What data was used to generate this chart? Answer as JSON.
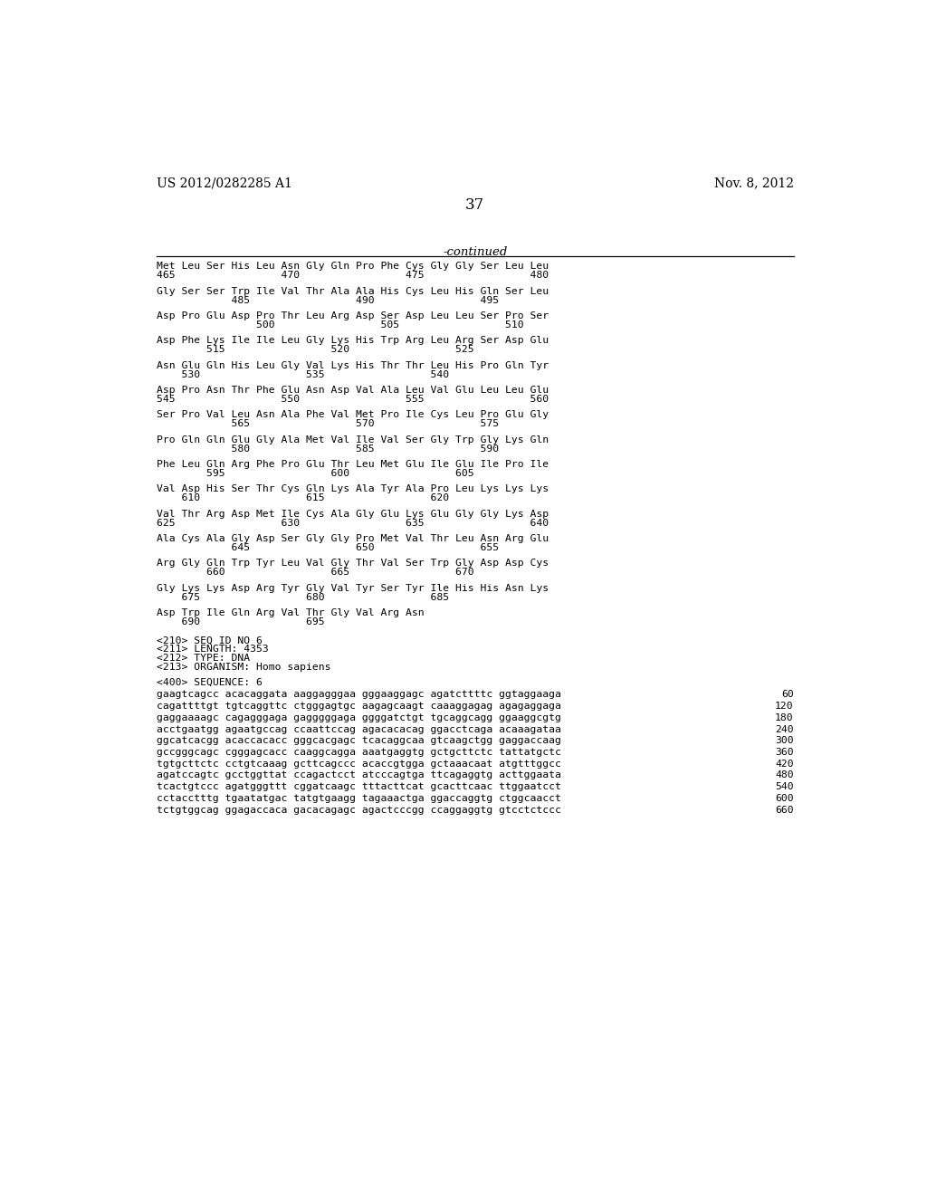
{
  "patent_number": "US 2012/0282285 A1",
  "date": "Nov. 8, 2012",
  "page_number": "37",
  "continued_label": "-continued",
  "background_color": "#ffffff",
  "text_color": "#000000",
  "protein_data": [
    [
      "Met Leu Ser His Leu Asn Gly Gln Pro Phe Cys Gly Gly Ser Leu Leu",
      "465                 470                 475                 480"
    ],
    [
      "Gly Ser Ser Trp Ile Val Thr Ala Ala His Cys Leu His Gln Ser Leu",
      "            485                 490                 495"
    ],
    [
      "Asp Pro Glu Asp Pro Thr Leu Arg Asp Ser Asp Leu Leu Ser Pro Ser",
      "                500                 505                 510"
    ],
    [
      "Asp Phe Lys Ile Ile Leu Gly Lys His Trp Arg Leu Arg Ser Asp Glu",
      "        515                 520                 525"
    ],
    [
      "Asn Glu Gln His Leu Gly Val Lys His Thr Thr Leu His Pro Gln Tyr",
      "    530                 535                 540"
    ],
    [
      "Asp Pro Asn Thr Phe Glu Asn Asp Val Ala Leu Val Glu Leu Leu Glu",
      "545                 550                 555                 560"
    ],
    [
      "Ser Pro Val Leu Asn Ala Phe Val Met Pro Ile Cys Leu Pro Glu Gly",
      "            565                 570                 575"
    ],
    [
      "Pro Gln Gln Glu Gly Ala Met Val Ile Val Ser Gly Trp Gly Lys Gln",
      "            580                 585                 590"
    ],
    [
      "Phe Leu Gln Arg Phe Pro Glu Thr Leu Met Glu Ile Glu Ile Pro Ile",
      "        595                 600                 605"
    ],
    [
      "Val Asp His Ser Thr Cys Gln Lys Ala Tyr Ala Pro Leu Lys Lys Lys",
      "    610                 615                 620"
    ],
    [
      "Val Thr Arg Asp Met Ile Cys Ala Gly Glu Lys Glu Gly Gly Lys Asp",
      "625                 630                 635                 640"
    ],
    [
      "Ala Cys Ala Gly Asp Ser Gly Gly Pro Met Val Thr Leu Asn Arg Glu",
      "            645                 650                 655"
    ],
    [
      "Arg Gly Gln Trp Tyr Leu Val Gly Thr Val Ser Trp Gly Asp Asp Cys",
      "        660                 665                 670"
    ],
    [
      "Gly Lys Lys Asp Arg Tyr Gly Val Tyr Ser Tyr Ile His His Asn Lys",
      "    675                 680                 685"
    ],
    [
      "Asp Trp Ile Gln Arg Val Thr Gly Val Arg Asn",
      "    690                 695"
    ]
  ],
  "seq_info": [
    "<210> SEQ ID NO 6",
    "<211> LENGTH: 4353",
    "<212> TYPE: DNA",
    "<213> ORGANISM: Homo sapiens"
  ],
  "seq_label": "<400> SEQUENCE: 6",
  "dna_lines": [
    [
      "gaagtcagcc acacaggata aaggagggaa gggaaggagc agatcttttc ggtaggaaga",
      "60"
    ],
    [
      "cagattttgt tgtcaggttc ctgggagtgc aagagcaagt caaaggagag agagaggaga",
      "120"
    ],
    [
      "gaggaaaagc cagagggaga gagggggaga ggggatctgt tgcaggcagg ggaaggcgtg",
      "180"
    ],
    [
      "acctgaatgg agaatgccag ccaattccag agacacacag ggacctcaga acaaagataa",
      "240"
    ],
    [
      "ggcatcacgg acaccacacc gggcacgagc tcacaggcaa gtcaagctgg gaggaccaag",
      "300"
    ],
    [
      "gccgggcagc cgggagcacc caaggcagga aaatgaggtg gctgcttctc tattatgctc",
      "360"
    ],
    [
      "tgtgcttctc cctgtcaaag gcttcagccc acaccgtgga gctaaacaat atgtttggcc",
      "420"
    ],
    [
      "agatccagtc gcctggttat ccagactcct atcccagtga ttcagaggtg acttggaata",
      "480"
    ],
    [
      "tcactgtccc agatgggttt cggatcaagc tttacttcat gcacttcaac ttggaatcct",
      "540"
    ],
    [
      "cctacctttg tgaatatgac tatgtgaagg tagaaactga ggaccaggtg ctggcaacct",
      "600"
    ],
    [
      "tctgtggcag ggagaccaca gacacagagc agactcccgg ccaggaggtg gtcctctccc",
      "660"
    ]
  ]
}
